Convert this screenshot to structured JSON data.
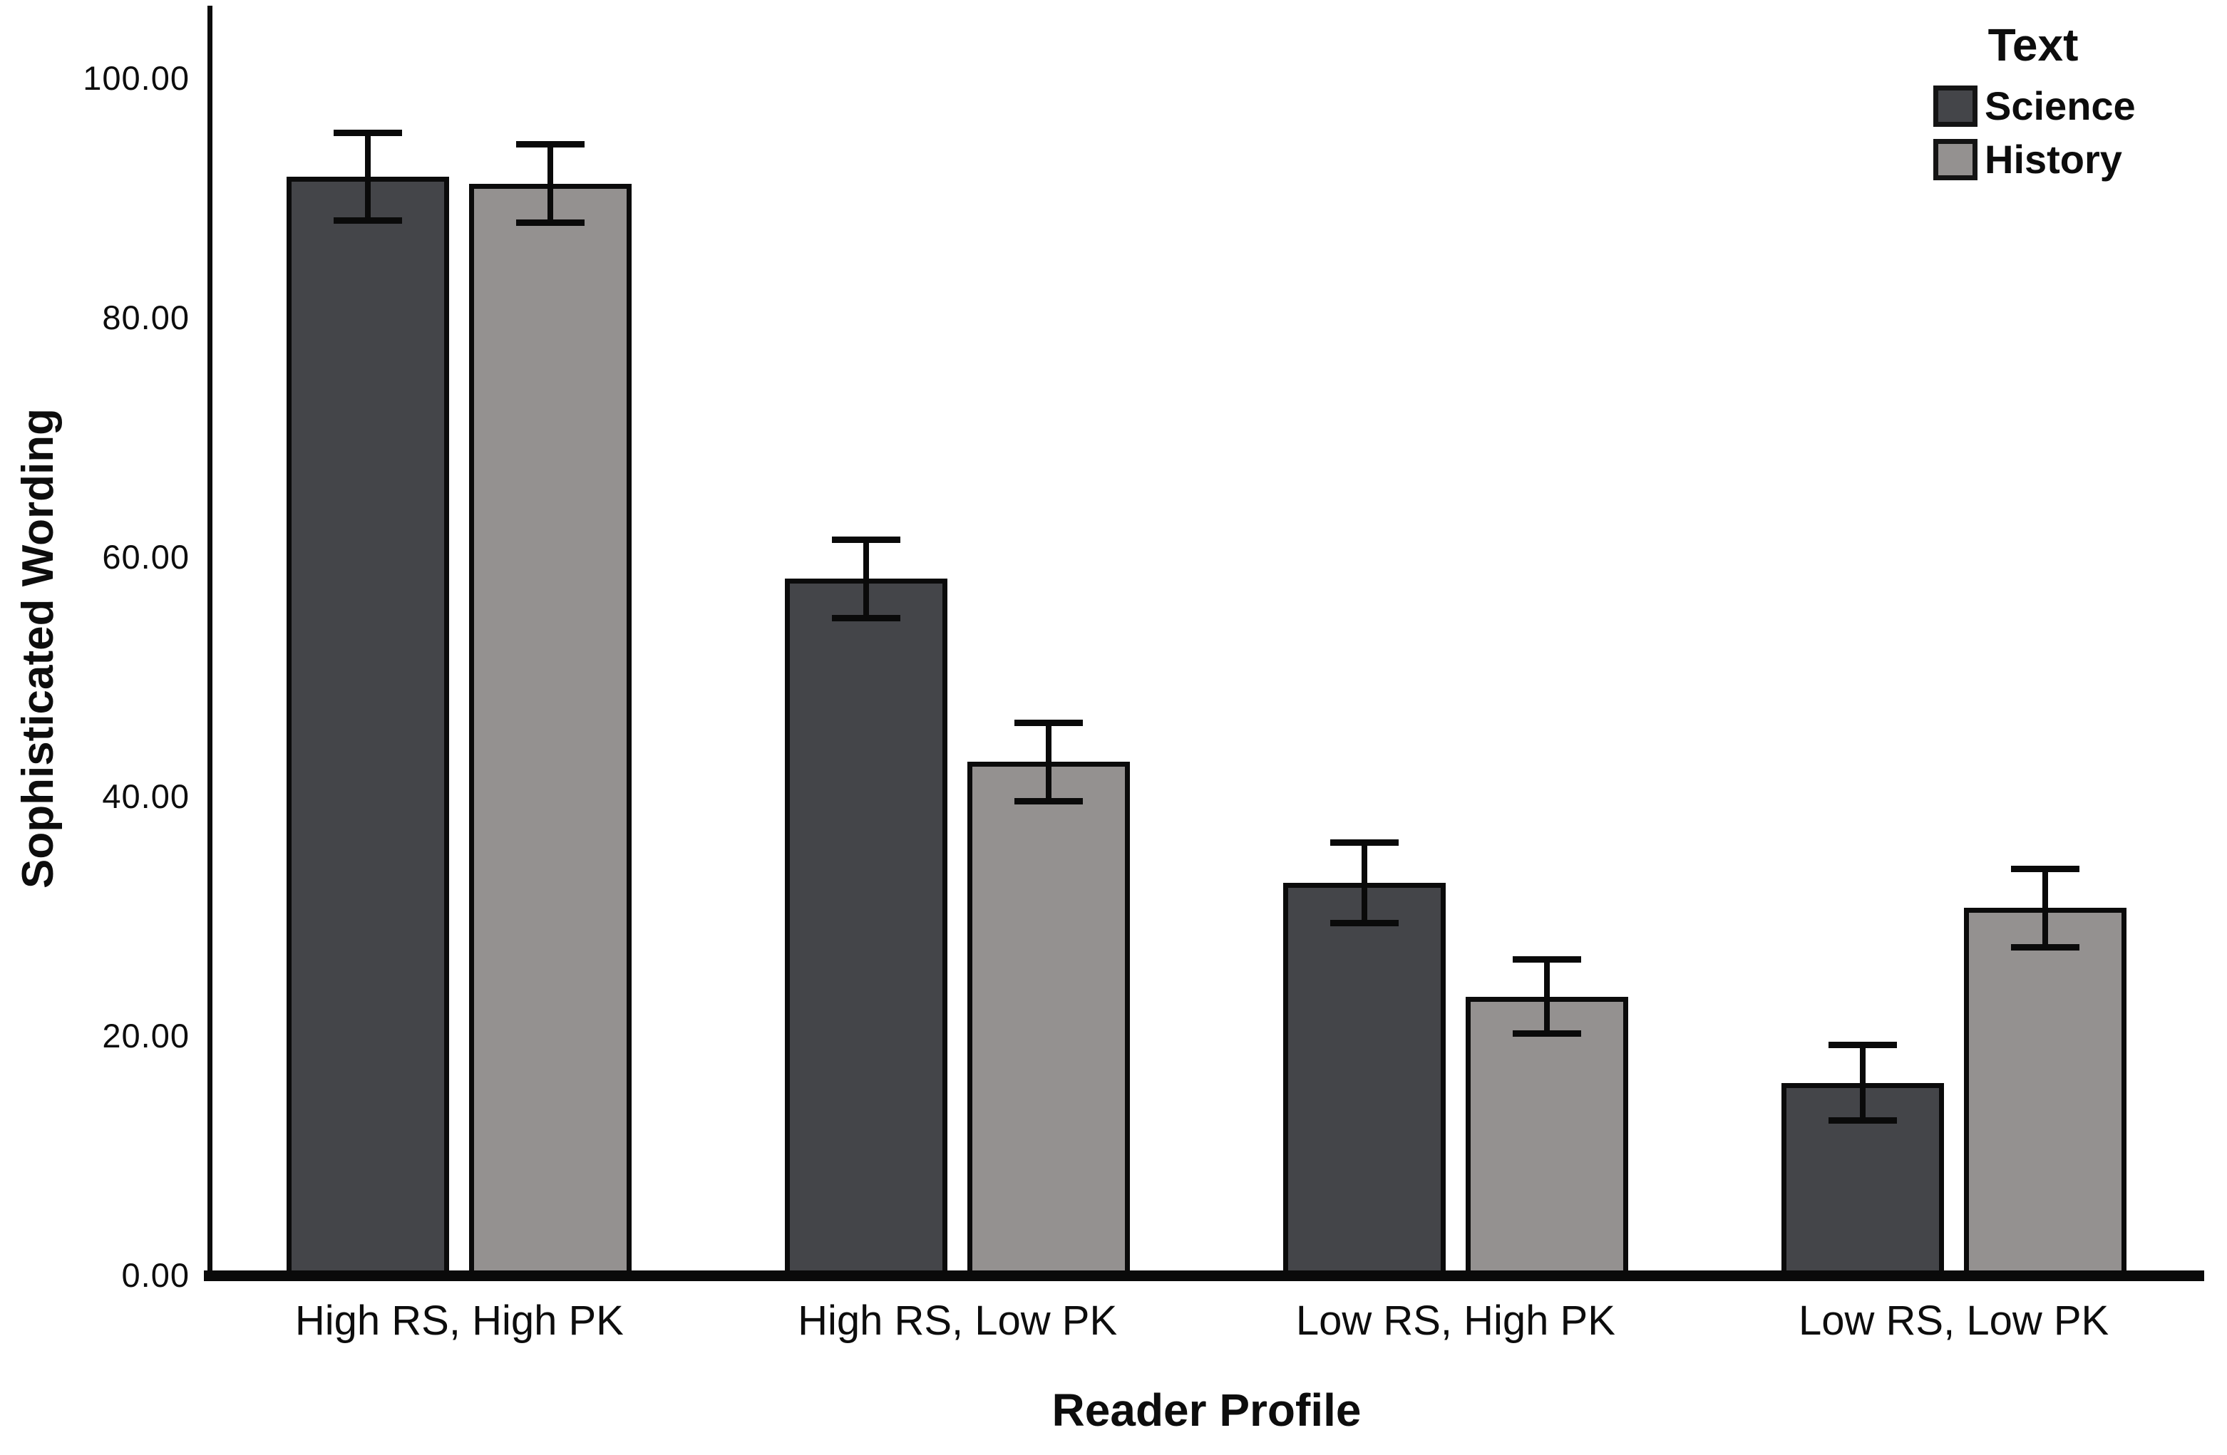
{
  "chart_data": {
    "type": "bar",
    "title": "",
    "xlabel": "Reader Profile",
    "ylabel": "Sophisticated Wording",
    "categories": [
      "High RS, High PK",
      "High RS, Low PK",
      "Low RS, High PK",
      "Low RS, Low PK"
    ],
    "series": [
      {
        "name": "Science",
        "color": "#444549",
        "values": [
          91.8,
          58.2,
          32.8,
          16.1
        ],
        "errors": [
          3.7,
          3.3,
          3.4,
          3.2
        ]
      },
      {
        "name": "History",
        "color": "#949190",
        "values": [
          91.2,
          42.9,
          23.3,
          30.7
        ],
        "errors": [
          3.3,
          3.3,
          3.1,
          3.3
        ]
      }
    ],
    "y_axis": {
      "min": 0,
      "max": 100,
      "tick_step": 20,
      "tick_labels": [
        "0.00",
        "20.00",
        "40.00",
        "60.00",
        "80.00",
        "100.00"
      ]
    },
    "legend": {
      "title": "Text",
      "position": "top-right"
    },
    "grid": false,
    "error_bars": true,
    "colors": {
      "axis": "#0a0a0a",
      "text": "#0d0d0d",
      "background": "#ffffff"
    }
  }
}
